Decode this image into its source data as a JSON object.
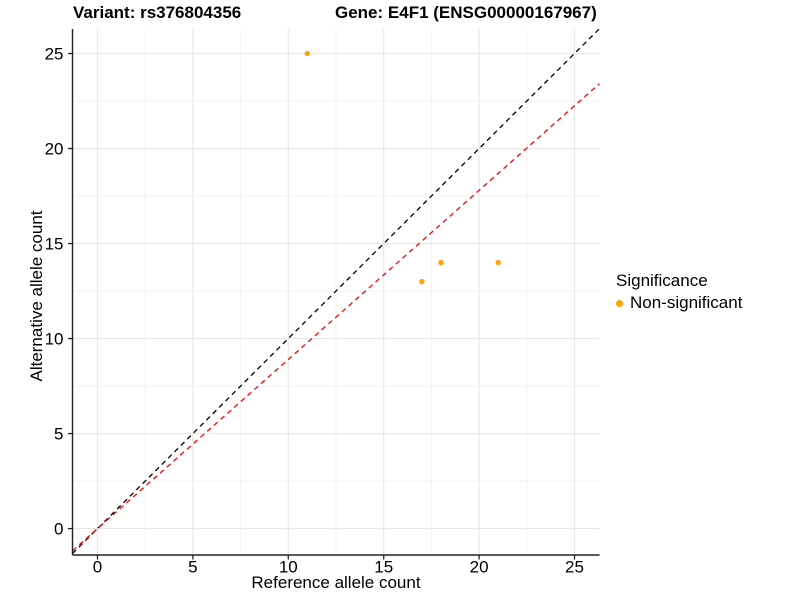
{
  "chart_data": {
    "type": "scatter",
    "title_left": "Variant: rs376804356",
    "title_right": "Gene: E4F1 (ENSG00000167967)",
    "xlabel": "Reference allele count",
    "ylabel": "Alternative allele count",
    "xlim": [
      -1.31,
      26.31
    ],
    "ylim": [
      -1.39,
      26.29
    ],
    "x_ticks": [
      0,
      5,
      10,
      15,
      20,
      25
    ],
    "y_ticks": [
      0,
      5,
      10,
      15,
      20,
      25
    ],
    "x_minor": [
      2.5,
      7.5,
      12.5,
      17.5,
      22.5
    ],
    "y_minor": [
      2.5,
      7.5,
      12.5,
      17.5,
      22.5
    ],
    "grid": true,
    "legend_position": "right",
    "legend": {
      "title": "Significance",
      "items": [
        {
          "label": "Non-significant",
          "color": "#FFA500"
        }
      ]
    },
    "point_color": "#FFA500",
    "points": [
      {
        "x": 11,
        "y": 25
      },
      {
        "x": 17,
        "y": 13
      },
      {
        "x": 18,
        "y": 14
      },
      {
        "x": 21,
        "y": 14
      }
    ],
    "lines": [
      {
        "name": "identity-line",
        "slope": 1,
        "intercept": 0,
        "color": "#000000",
        "style": "dashed"
      },
      {
        "name": "ratio-line",
        "slope": 0.89,
        "intercept": 0,
        "color": "#FF0000",
        "style": "dashed"
      }
    ],
    "style": {
      "grid_major": "#E7E7E7",
      "grid_minor": "#F2F2F2",
      "axis": "#222222",
      "text": "#000000"
    }
  }
}
